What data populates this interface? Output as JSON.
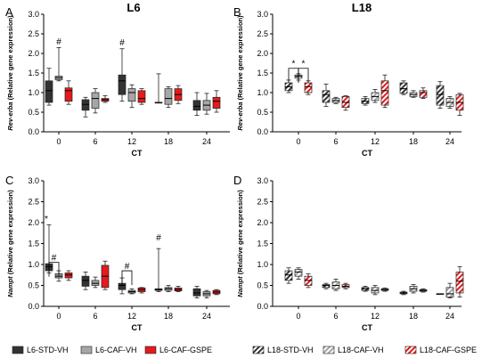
{
  "figure": {
    "x_axis_label": "CT",
    "colors": {
      "std": "#333333",
      "caf": "#a6a6a6",
      "gspe": "#e41a1c"
    },
    "legend": [
      {
        "key": "std",
        "label": "L6-STD-VH",
        "hatched": false
      },
      {
        "key": "caf",
        "label": "L6-CAF-VH",
        "hatched": false
      },
      {
        "key": "gspe",
        "label": "L6-CAF-GSPE",
        "hatched": false
      },
      {
        "key": "std",
        "label": "L18-STD-VH",
        "hatched": true
      },
      {
        "key": "caf",
        "label": "L18-CAF-VH",
        "hatched": true
      },
      {
        "key": "gspe",
        "label": "L18-CAF-GSPE",
        "hatched": true
      }
    ]
  },
  "chart_data": [
    {
      "type": "box",
      "letter": "A",
      "title": "L6",
      "ylabel_gene": "Rev-erba",
      "ylabel_rest": "(Relative gene expression)",
      "ylim": [
        0,
        3.0
      ],
      "yticks": [
        "0.0",
        "0.5",
        "1.0",
        "1.5",
        "2.0",
        "2.5",
        "3.0"
      ],
      "categories": [
        "0",
        "6",
        "12",
        "18",
        "24"
      ],
      "hatched": false,
      "series": [
        {
          "key": "std",
          "name": "L6-STD-VH",
          "boxes": [
            [
              0.68,
              0.75,
              1.05,
              1.3,
              1.62
            ],
            [
              0.38,
              0.55,
              0.7,
              0.82,
              0.88
            ],
            [
              0.78,
              0.95,
              1.3,
              1.45,
              2.12
            ],
            [
              0.75,
              0.75,
              0.75,
              0.75,
              1.48
            ],
            [
              0.42,
              0.55,
              0.65,
              0.8,
              1.0
            ]
          ]
        },
        {
          "key": "caf",
          "name": "L6-CAF-VH",
          "boxes": [
            [
              1.3,
              1.33,
              1.38,
              1.42,
              2.15
            ],
            [
              0.48,
              0.6,
              0.85,
              1.0,
              1.1
            ],
            [
              0.62,
              0.78,
              1.0,
              1.1,
              1.2
            ],
            [
              0.62,
              0.7,
              0.85,
              1.1,
              1.15
            ],
            [
              0.45,
              0.55,
              0.68,
              0.8,
              0.98
            ]
          ]
        },
        {
          "key": "gspe",
          "name": "L6-CAF-GSPE",
          "boxes": [
            [
              0.7,
              0.78,
              1.05,
              1.12,
              1.3
            ],
            [
              0.75,
              0.78,
              0.82,
              0.85,
              0.92
            ],
            [
              0.7,
              0.75,
              0.85,
              1.05,
              1.1
            ],
            [
              0.72,
              0.8,
              0.95,
              1.1,
              1.18
            ],
            [
              0.5,
              0.6,
              0.78,
              0.88,
              1.05
            ]
          ]
        }
      ],
      "annotations": [
        {
          "text": "#",
          "cat": 0,
          "series": 1,
          "y": 2.2
        },
        {
          "text": "#",
          "cat": 2,
          "series": 0,
          "y": 2.18
        }
      ],
      "brackets": []
    },
    {
      "type": "box",
      "letter": "B",
      "title": "L18",
      "ylabel_gene": "Rev-erba",
      "ylabel_rest": "(Relative gene expression)",
      "ylim": [
        0,
        3.0
      ],
      "yticks": [
        "0.0",
        "0.5",
        "1.0",
        "1.5",
        "2.0",
        "2.5",
        "3.0"
      ],
      "categories": [
        "0",
        "6",
        "12",
        "18",
        "24"
      ],
      "hatched": true,
      "series": [
        {
          "key": "std",
          "name": "L18-STD-VH",
          "boxes": [
            [
              1.0,
              1.05,
              1.15,
              1.25,
              1.32
            ],
            [
              0.65,
              0.75,
              0.95,
              1.05,
              1.22
            ],
            [
              0.68,
              0.72,
              0.78,
              0.85,
              0.9
            ],
            [
              0.95,
              0.98,
              1.1,
              1.25,
              1.3
            ],
            [
              0.6,
              0.68,
              0.95,
              1.18,
              1.28
            ]
          ]
        },
        {
          "key": "caf",
          "name": "L18-CAF-VH",
          "boxes": [
            [
              1.32,
              1.37,
              1.42,
              1.45,
              1.48
            ],
            [
              0.72,
              0.75,
              0.8,
              0.85,
              0.88
            ],
            [
              0.75,
              0.8,
              0.9,
              1.0,
              1.08
            ],
            [
              0.88,
              0.9,
              0.95,
              1.0,
              1.05
            ],
            [
              0.6,
              0.65,
              0.75,
              0.85,
              0.9
            ]
          ]
        },
        {
          "key": "gspe",
          "name": "L18-CAF-GSPE",
          "boxes": [
            [
              0.95,
              1.0,
              1.15,
              1.25,
              1.3
            ],
            [
              0.55,
              0.62,
              0.75,
              0.9,
              0.92
            ],
            [
              0.62,
              0.68,
              1.05,
              1.3,
              1.45
            ],
            [
              0.85,
              0.88,
              1.0,
              1.05,
              1.12
            ],
            [
              0.42,
              0.55,
              0.75,
              0.95,
              0.98
            ]
          ]
        }
      ],
      "annotations": [],
      "brackets": [
        {
          "text": "*",
          "from": [
            0,
            0
          ],
          "to": [
            0,
            1
          ],
          "y": 1.62
        },
        {
          "text": "*",
          "from": [
            0,
            1
          ],
          "to": [
            0,
            2
          ],
          "y": 1.62
        }
      ]
    },
    {
      "type": "box",
      "letter": "C",
      "title": "",
      "ylabel_gene": "Nampt",
      "ylabel_rest": "(Relative gene expression)",
      "ylim": [
        0,
        3.0
      ],
      "yticks": [
        "0.0",
        "0.5",
        "1.0",
        "1.5",
        "2.0",
        "2.5",
        "3.0"
      ],
      "categories": [
        "0",
        "6",
        "12",
        "18",
        "24"
      ],
      "hatched": false,
      "series": [
        {
          "key": "std",
          "name": "L6-STD-VH",
          "boxes": [
            [
              0.8,
              0.85,
              0.95,
              1.02,
              1.95
            ],
            [
              0.4,
              0.48,
              0.62,
              0.72,
              0.82
            ],
            [
              0.3,
              0.4,
              0.5,
              0.55,
              0.68
            ],
            [
              0.35,
              0.38,
              0.4,
              0.42,
              1.38
            ],
            [
              0.2,
              0.25,
              0.32,
              0.42,
              0.48
            ]
          ]
        },
        {
          "key": "caf",
          "name": "L6-CAF-VH",
          "boxes": [
            [
              0.6,
              0.68,
              0.72,
              0.78,
              0.85
            ],
            [
              0.45,
              0.5,
              0.55,
              0.62,
              0.7
            ],
            [
              0.3,
              0.32,
              0.35,
              0.38,
              0.42
            ],
            [
              0.35,
              0.38,
              0.42,
              0.45,
              0.5
            ],
            [
              0.2,
              0.25,
              0.3,
              0.35,
              0.38
            ]
          ]
        },
        {
          "key": "gspe",
          "name": "L6-CAF-GSPE",
          "boxes": [
            [
              0.62,
              0.68,
              0.75,
              0.8,
              0.85
            ],
            [
              0.4,
              0.45,
              0.72,
              0.98,
              1.08
            ],
            [
              0.32,
              0.35,
              0.4,
              0.44,
              0.45
            ],
            [
              0.35,
              0.37,
              0.4,
              0.44,
              0.48
            ],
            [
              0.28,
              0.3,
              0.34,
              0.38,
              0.4
            ]
          ]
        }
      ],
      "annotations": [
        {
          "text": "#",
          "cat": 3,
          "series": 0,
          "y": 1.55
        }
      ],
      "brackets": [
        {
          "text": "*",
          "from": [
            0,
            0
          ],
          "to": null,
          "y": 2.0
        },
        {
          "text": "#",
          "from": [
            0,
            0
          ],
          "to": [
            0,
            1
          ],
          "y": 1.05
        },
        {
          "text": "#",
          "from": [
            2,
            0
          ],
          "to": [
            2,
            1
          ],
          "y": 0.85
        }
      ]
    },
    {
      "type": "box",
      "letter": "D",
      "title": "",
      "ylabel_gene": "Nampt",
      "ylabel_rest": "(Relative gene expression)",
      "ylim": [
        0,
        3.0
      ],
      "yticks": [
        "0.0",
        "0.5",
        "1.0",
        "1.5",
        "2.0",
        "2.5",
        "3.0"
      ],
      "categories": [
        "0",
        "6",
        "12",
        "18",
        "24"
      ],
      "hatched": true,
      "series": [
        {
          "key": "std",
          "name": "L18-STD-VH",
          "boxes": [
            [
              0.55,
              0.62,
              0.75,
              0.85,
              0.92
            ],
            [
              0.42,
              0.45,
              0.5,
              0.52,
              0.55
            ],
            [
              0.36,
              0.38,
              0.42,
              0.45,
              0.48
            ],
            [
              0.28,
              0.3,
              0.32,
              0.34,
              0.36
            ],
            [
              0.3,
              0.3,
              0.3,
              0.3,
              0.3
            ]
          ]
        },
        {
          "key": "caf",
          "name": "L18-CAF-VH",
          "boxes": [
            [
              0.65,
              0.72,
              0.82,
              0.88,
              0.92
            ],
            [
              0.38,
              0.42,
              0.5,
              0.58,
              0.65
            ],
            [
              0.28,
              0.32,
              0.38,
              0.45,
              0.5
            ],
            [
              0.32,
              0.36,
              0.42,
              0.48,
              0.52
            ],
            [
              0.2,
              0.22,
              0.3,
              0.45,
              0.55
            ]
          ]
        },
        {
          "key": "gspe",
          "name": "L18-CAF-GSPE",
          "boxes": [
            [
              0.45,
              0.5,
              0.62,
              0.72,
              0.78
            ],
            [
              0.42,
              0.45,
              0.48,
              0.52,
              0.55
            ],
            [
              0.36,
              0.38,
              0.4,
              0.42,
              0.44
            ],
            [
              0.34,
              0.36,
              0.38,
              0.4,
              0.42
            ],
            [
              0.22,
              0.32,
              0.6,
              0.82,
              0.95
            ]
          ]
        }
      ],
      "annotations": [],
      "brackets": []
    }
  ]
}
